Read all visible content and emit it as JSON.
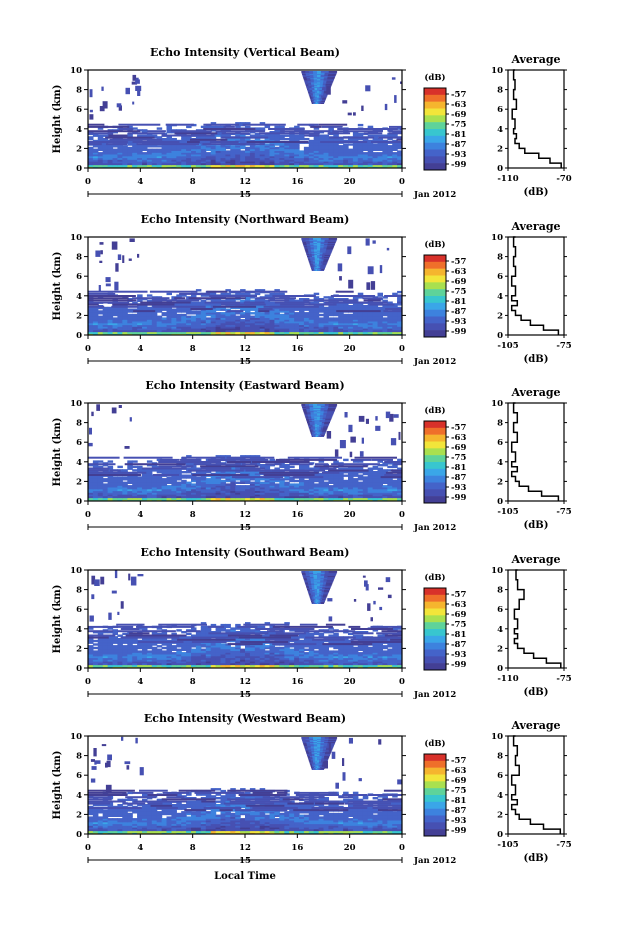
{
  "figure": {
    "x_axis_label": "Local Time",
    "date_label": "Jan 2012",
    "day_label": "15"
  },
  "colorbar": {
    "unit_label": "(dB)",
    "tick_labels": [
      "-57",
      "-63",
      "-69",
      "-75",
      "-81",
      "-87",
      "-93",
      "-99"
    ],
    "colors": [
      "#d8312a",
      "#ef6f2a",
      "#f5b52e",
      "#f2e53a",
      "#a9e04f",
      "#5ed39a",
      "#38c6cf",
      "#3aa6e8",
      "#3d82de",
      "#4463c9",
      "#4650b2",
      "#433f95"
    ]
  },
  "chart_data": [
    {
      "type": "heatmap",
      "title": "Echo Intensity (Vertical Beam)",
      "ylabel": "Height (km)",
      "xlim": [
        0,
        24
      ],
      "ylim": [
        0,
        10
      ],
      "x_ticks": [
        "0",
        "4",
        "8",
        "12",
        "16",
        "20",
        "0"
      ],
      "y_ticks": [
        "0",
        "2",
        "4",
        "6",
        "8",
        "10"
      ],
      "colorbar_range_db": [
        -99,
        -57
      ],
      "average_profile": {
        "title": "Average",
        "xlabel": "(dB)",
        "x_ticks": [
          "-110",
          "-70"
        ],
        "xlim": [
          -110,
          -70
        ],
        "height_km": [
          0,
          0.5,
          1,
          1.5,
          2,
          2.5,
          3,
          3.5,
          4,
          5,
          6,
          7,
          8,
          9,
          10
        ],
        "db": [
          -72,
          -80,
          -88,
          -98,
          -102,
          -105,
          -104,
          -106,
          -105,
          -107,
          -104,
          -106,
          -105,
          -106,
          -105
        ]
      }
    },
    {
      "type": "heatmap",
      "title": "Echo Intensity (Northward Beam)",
      "ylabel": "Height (km)",
      "xlim": [
        0,
        24
      ],
      "ylim": [
        0,
        10
      ],
      "x_ticks": [
        "0",
        "4",
        "8",
        "12",
        "16",
        "20",
        "0"
      ],
      "y_ticks": [
        "0",
        "2",
        "4",
        "6",
        "8",
        "10"
      ],
      "colorbar_range_db": [
        -99,
        -57
      ],
      "average_profile": {
        "title": "Average",
        "xlabel": "(dB)",
        "x_ticks": [
          "-105",
          "-75"
        ],
        "xlim": [
          -105,
          -75
        ],
        "height_km": [
          0,
          0.5,
          1,
          1.5,
          2,
          2.5,
          3,
          3.5,
          4,
          5,
          6,
          7,
          8,
          9,
          10
        ],
        "db": [
          -78,
          -86,
          -93,
          -98,
          -101,
          -103,
          -100,
          -103,
          -101,
          -103,
          -101,
          -102,
          -101,
          -102,
          -101
        ]
      }
    },
    {
      "type": "heatmap",
      "title": "Echo Intensity (Eastward Beam)",
      "ylabel": "Height (km)",
      "xlim": [
        0,
        24
      ],
      "ylim": [
        0,
        10
      ],
      "x_ticks": [
        "0",
        "4",
        "8",
        "12",
        "16",
        "20",
        "0"
      ],
      "y_ticks": [
        "0",
        "2",
        "4",
        "6",
        "8",
        "10"
      ],
      "colorbar_range_db": [
        -99,
        -57
      ],
      "average_profile": {
        "title": "Average",
        "xlabel": "(dB)",
        "x_ticks": [
          "-105",
          "-75"
        ],
        "xlim": [
          -105,
          -75
        ],
        "height_km": [
          0,
          0.5,
          1,
          1.5,
          2,
          2.5,
          3,
          3.5,
          4,
          5,
          6,
          7,
          8,
          9,
          10
        ],
        "db": [
          -78,
          -87,
          -94,
          -99,
          -101,
          -103,
          -100,
          -103,
          -101,
          -103,
          -100,
          -102,
          -100,
          -102,
          -101
        ]
      }
    },
    {
      "type": "heatmap",
      "title": "Echo Intensity (Southward Beam)",
      "ylabel": "Height (km)",
      "xlim": [
        0,
        24
      ],
      "ylim": [
        0,
        10
      ],
      "x_ticks": [
        "0",
        "4",
        "8",
        "12",
        "16",
        "20",
        "0"
      ],
      "y_ticks": [
        "0",
        "2",
        "4",
        "6",
        "8",
        "10"
      ],
      "colorbar_range_db": [
        -99,
        -57
      ],
      "average_profile": {
        "title": "Average",
        "xlabel": "(dB)",
        "x_ticks": [
          "-110",
          "-75"
        ],
        "xlim": [
          -110,
          -75
        ],
        "height_km": [
          0,
          0.5,
          1,
          1.5,
          2,
          2.5,
          3,
          3.5,
          4,
          5,
          6,
          7,
          8,
          9,
          10
        ],
        "db": [
          -77,
          -86,
          -94,
          -100,
          -104,
          -106,
          -104,
          -106,
          -104,
          -106,
          -103,
          -100,
          -104,
          -105,
          -104
        ]
      }
    },
    {
      "type": "heatmap",
      "title": "Echo Intensity (Westward Beam)",
      "ylabel": "Height (km)",
      "xlim": [
        0,
        24
      ],
      "ylim": [
        0,
        10
      ],
      "x_ticks": [
        "0",
        "4",
        "8",
        "12",
        "16",
        "20",
        "0"
      ],
      "y_ticks": [
        "0",
        "2",
        "4",
        "6",
        "8",
        "10"
      ],
      "colorbar_range_db": [
        -99,
        -57
      ],
      "average_profile": {
        "title": "Average",
        "xlabel": "(dB)",
        "x_ticks": [
          "-105",
          "-75"
        ],
        "xlim": [
          -105,
          -75
        ],
        "height_km": [
          0,
          0.5,
          1,
          1.5,
          2,
          2.5,
          3,
          3.5,
          4,
          5,
          6,
          7,
          8,
          9,
          10
        ],
        "db": [
          -77,
          -86,
          -93,
          -99,
          -101,
          -103,
          -100,
          -103,
          -101,
          -103,
          -99,
          -101,
          -100,
          -102,
          -101
        ]
      }
    }
  ]
}
